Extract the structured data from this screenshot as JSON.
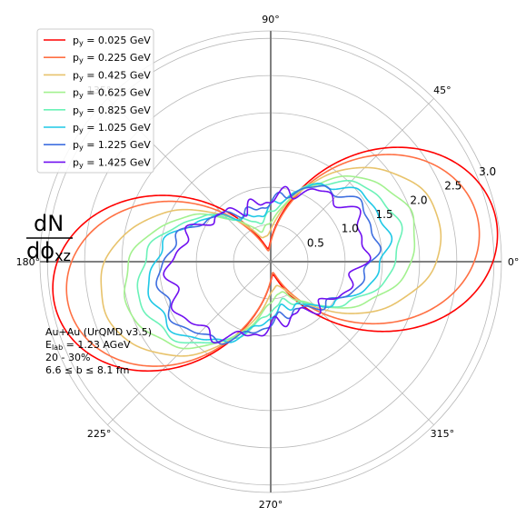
{
  "chart_data": {
    "type": "line",
    "projection": "polar",
    "ylabel": {
      "numerator": "dN",
      "denominator_base": "dϕ",
      "denominator_sub": "xz"
    },
    "radial_ticks": [
      0.5,
      1.0,
      1.5,
      2.0,
      2.5,
      3.0
    ],
    "radial_tick_labels": [
      "0.5",
      "1.0",
      "1.5",
      "2.0",
      "2.5",
      "3.0"
    ],
    "rmax": 3.1,
    "angular_ticks_deg": [
      0,
      45,
      90,
      135,
      180,
      225,
      270,
      315
    ],
    "angular_tick_labels": [
      "0°",
      "45°",
      "90°",
      "135°",
      "180°",
      "225°",
      "270°",
      "315°"
    ],
    "grid": true,
    "legend_position": "top-left",
    "legend_item_prefix": "p",
    "legend_item_sub": "y",
    "annotation": {
      "line1": "Au+Au (UrQMD v3.5)",
      "line2_base": "E",
      "line2_sub": "lab",
      "line2_rest": " = 1.23 AGeV",
      "line3": "20 - 30%",
      "line4": "6.6 ≤ b ≤ 8.1 fm"
    },
    "model": "r(φ) = a0 + a1·sin(φ−φ0) + a2·cos(2(φ−φ0)), symmetric about the origin",
    "series": [
      {
        "name": "= 0.025 GeV",
        "color": "#ff0000",
        "a0": 1.6,
        "a1": -0.06,
        "a2": -1.42,
        "phi0_deg": 100.5,
        "wiggle": 0.0
      },
      {
        "name": "= 0.225 GeV",
        "color": "#ff7043",
        "a0": 1.48,
        "a1": -0.03,
        "a2": -1.33,
        "phi0_deg": 101.5,
        "wiggle": 0.0
      },
      {
        "name": "= 0.425 GeV",
        "color": "#e8c36c",
        "a0": 1.33,
        "a1": 0.0,
        "a2": -1.0,
        "phi0_deg": 103.5,
        "wiggle": 0.01
      },
      {
        "name": "= 0.625 GeV",
        "color": "#a3f18f",
        "a0": 1.22,
        "a1": 0.01,
        "a2": -0.78,
        "phi0_deg": 105.0,
        "wiggle": 0.02
      },
      {
        "name": "= 0.825 GeV",
        "color": "#6bf2b8",
        "a0": 1.18,
        "a1": 0.02,
        "a2": -0.62,
        "phi0_deg": 106.5,
        "wiggle": 0.03
      },
      {
        "name": "= 1.025 GeV",
        "color": "#1fc8e6",
        "a0": 1.14,
        "a1": 0.03,
        "a2": -0.5,
        "phi0_deg": 108.0,
        "wiggle": 0.04
      },
      {
        "name": "= 1.225 GeV",
        "color": "#3f6fe0",
        "a0": 1.11,
        "a1": 0.04,
        "a2": -0.38,
        "phi0_deg": 109.5,
        "wiggle": 0.05
      },
      {
        "name": "= 1.425 GeV",
        "color": "#7010f0",
        "a0": 1.07,
        "a1": 0.05,
        "a2": -0.28,
        "phi0_deg": 111.0,
        "wiggle": 0.07
      }
    ]
  }
}
